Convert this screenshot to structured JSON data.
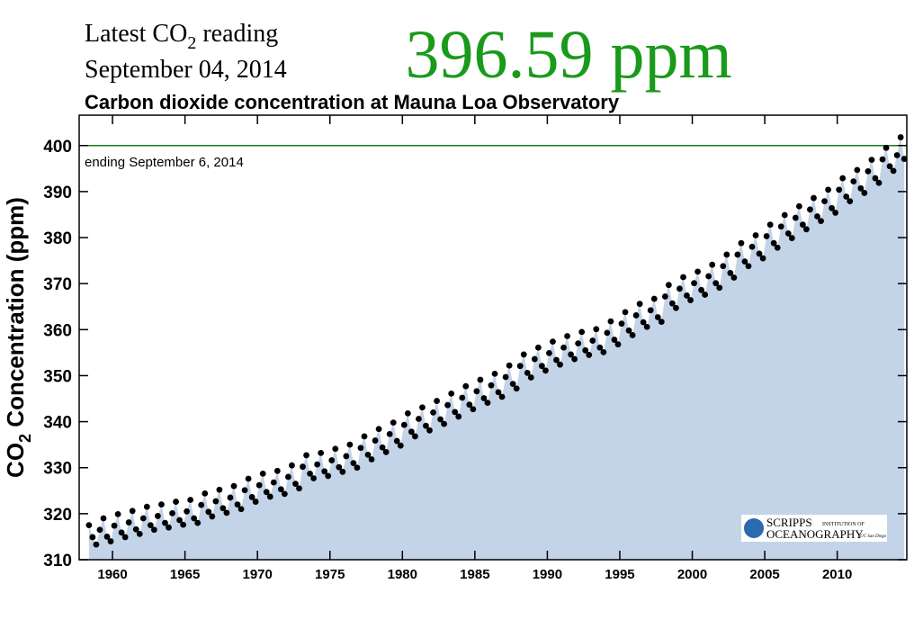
{
  "header": {
    "latest_label": "Latest CO",
    "latest_label_sub": "2",
    "latest_label_end": " reading",
    "date": "September 04, 2014",
    "reading": "396.59 ppm",
    "reading_color": "#1a9a1a"
  },
  "logo": {
    "name": "SCRIPPS",
    "sub": "INSTITUTION OF",
    "name2": "OCEANOGRAPHY",
    "campus": "UC San Diego"
  },
  "chart_data": {
    "type": "scatter",
    "title": "Carbon dioxide concentration at Mauna Loa Observatory",
    "y_label": "CO",
    "y_label_sub": "2",
    "y_label_end": " Concentration (ppm)",
    "annotation": "ending September 6, 2014",
    "reference_line": 400,
    "reference_color": "#1a7a1a",
    "area_color": "#c3d4e8",
    "color": "#000000",
    "xlim": [
      1957.7,
      2014.8
    ],
    "ylim": [
      310,
      406.6
    ],
    "xticks": [
      1960,
      1965,
      1970,
      1975,
      1980,
      1985,
      1990,
      1995,
      2000,
      2005,
      2010
    ],
    "yticks": [
      310,
      320,
      330,
      340,
      350,
      360,
      370,
      380,
      390,
      400
    ],
    "x": [
      1958.375,
      1958.625,
      1958.875,
      1959.125,
      1959.375,
      1959.625,
      1959.875,
      1960.125,
      1960.375,
      1960.625,
      1960.875,
      1961.125,
      1961.375,
      1961.625,
      1961.875,
      1962.125,
      1962.375,
      1962.625,
      1962.875,
      1963.125,
      1963.375,
      1963.625,
      1963.875,
      1964.125,
      1964.375,
      1964.625,
      1964.875,
      1965.125,
      1965.375,
      1965.625,
      1965.875,
      1966.125,
      1966.375,
      1966.625,
      1966.875,
      1967.125,
      1967.375,
      1967.625,
      1967.875,
      1968.125,
      1968.375,
      1968.625,
      1968.875,
      1969.125,
      1969.375,
      1969.625,
      1969.875,
      1970.125,
      1970.375,
      1970.625,
      1970.875,
      1971.125,
      1971.375,
      1971.625,
      1971.875,
      1972.125,
      1972.375,
      1972.625,
      1972.875,
      1973.125,
      1973.375,
      1973.625,
      1973.875,
      1974.125,
      1974.375,
      1974.625,
      1974.875,
      1975.125,
      1975.375,
      1975.625,
      1975.875,
      1976.125,
      1976.375,
      1976.625,
      1976.875,
      1977.125,
      1977.375,
      1977.625,
      1977.875,
      1978.125,
      1978.375,
      1978.625,
      1978.875,
      1979.125,
      1979.375,
      1979.625,
      1979.875,
      1980.125,
      1980.375,
      1980.625,
      1980.875,
      1981.125,
      1981.375,
      1981.625,
      1981.875,
      1982.125,
      1982.375,
      1982.625,
      1982.875,
      1983.125,
      1983.375,
      1983.625,
      1983.875,
      1984.125,
      1984.375,
      1984.625,
      1984.875,
      1985.125,
      1985.375,
      1985.625,
      1985.875,
      1986.125,
      1986.375,
      1986.625,
      1986.875,
      1987.125,
      1987.375,
      1987.625,
      1987.875,
      1988.125,
      1988.375,
      1988.625,
      1988.875,
      1989.125,
      1989.375,
      1989.625,
      1989.875,
      1990.125,
      1990.375,
      1990.625,
      1990.875,
      1991.125,
      1991.375,
      1991.625,
      1991.875,
      1992.125,
      1992.375,
      1992.625,
      1992.875,
      1993.125,
      1993.375,
      1993.625,
      1993.875,
      1994.125,
      1994.375,
      1994.625,
      1994.875,
      1995.125,
      1995.375,
      1995.625,
      1995.875,
      1996.125,
      1996.375,
      1996.625,
      1996.875,
      1997.125,
      1997.375,
      1997.625,
      1997.875,
      1998.125,
      1998.375,
      1998.625,
      1998.875,
      1999.125,
      1999.375,
      1999.625,
      1999.875,
      2000.125,
      2000.375,
      2000.625,
      2000.875,
      2001.125,
      2001.375,
      2001.625,
      2001.875,
      2002.125,
      2002.375,
      2002.625,
      2002.875,
      2003.125,
      2003.375,
      2003.625,
      2003.875,
      2004.125,
      2004.375,
      2004.625,
      2004.875,
      2005.125,
      2005.375,
      2005.625,
      2005.875,
      2006.125,
      2006.375,
      2006.625,
      2006.875,
      2007.125,
      2007.375,
      2007.625,
      2007.875,
      2008.125,
      2008.375,
      2008.625,
      2008.875,
      2009.125,
      2009.375,
      2009.625,
      2009.875,
      2010.125,
      2010.375,
      2010.625,
      2010.875,
      2011.125,
      2011.375,
      2011.625,
      2011.875,
      2012.125,
      2012.375,
      2012.625,
      2012.875,
      2013.125,
      2013.375,
      2013.625,
      2013.875,
      2014.125,
      2014.375,
      2014.625
    ],
    "values": [
      317.5,
      314.9,
      313.3,
      316.5,
      319.0,
      315.0,
      314.0,
      317.4,
      319.9,
      315.9,
      314.9,
      318.1,
      320.6,
      316.6,
      315.6,
      319.0,
      321.5,
      317.5,
      316.5,
      319.5,
      322.0,
      318.0,
      317.0,
      320.1,
      322.6,
      318.6,
      317.6,
      320.5,
      323.0,
      319.0,
      318.0,
      321.9,
      324.4,
      320.4,
      319.4,
      322.7,
      325.2,
      321.2,
      320.2,
      323.5,
      326.0,
      322.0,
      321.0,
      325.1,
      327.6,
      323.6,
      322.6,
      326.2,
      328.7,
      324.7,
      323.7,
      326.8,
      329.3,
      325.3,
      324.3,
      328.0,
      330.5,
      326.5,
      325.5,
      330.2,
      332.7,
      328.7,
      327.7,
      330.7,
      333.2,
      329.2,
      328.2,
      331.6,
      334.1,
      330.1,
      329.1,
      332.5,
      335.0,
      331.0,
      330.0,
      334.3,
      336.8,
      332.8,
      331.8,
      335.9,
      338.4,
      334.4,
      333.4,
      337.3,
      339.8,
      335.8,
      334.8,
      339.3,
      341.8,
      337.8,
      336.8,
      340.6,
      343.1,
      339.1,
      338.1,
      342.0,
      344.5,
      340.5,
      339.5,
      343.6,
      346.1,
      342.1,
      341.1,
      345.2,
      347.7,
      343.7,
      342.7,
      346.6,
      349.1,
      345.1,
      344.1,
      347.9,
      350.4,
      346.4,
      345.4,
      349.7,
      352.2,
      348.2,
      347.2,
      352.1,
      354.6,
      350.6,
      349.6,
      353.6,
      356.1,
      352.1,
      351.1,
      354.9,
      357.4,
      353.4,
      352.4,
      356.1,
      358.6,
      354.6,
      353.6,
      357.0,
      359.5,
      355.5,
      354.5,
      357.6,
      360.1,
      356.1,
      355.1,
      359.3,
      361.8,
      357.8,
      356.8,
      361.3,
      363.8,
      359.8,
      358.8,
      363.1,
      365.6,
      361.6,
      360.6,
      364.2,
      366.7,
      362.7,
      361.7,
      367.2,
      369.7,
      365.7,
      364.7,
      368.9,
      371.4,
      367.4,
      366.4,
      370.1,
      372.6,
      368.6,
      367.6,
      371.6,
      374.1,
      370.1,
      369.1,
      373.8,
      376.3,
      372.3,
      371.3,
      376.3,
      378.8,
      374.8,
      373.8,
      378.0,
      380.5,
      376.5,
      375.5,
      380.3,
      382.8,
      378.8,
      377.8,
      382.4,
      384.9,
      380.9,
      379.9,
      384.3,
      386.8,
      382.8,
      381.8,
      386.1,
      388.6,
      384.6,
      383.6,
      387.9,
      390.4,
      386.4,
      385.4,
      390.4,
      392.9,
      388.9,
      387.9,
      392.2,
      394.7,
      390.7,
      389.7,
      394.4,
      396.9,
      392.9,
      391.9,
      397.0,
      399.5,
      395.5,
      394.5,
      397.9,
      401.8,
      397.1
    ]
  }
}
